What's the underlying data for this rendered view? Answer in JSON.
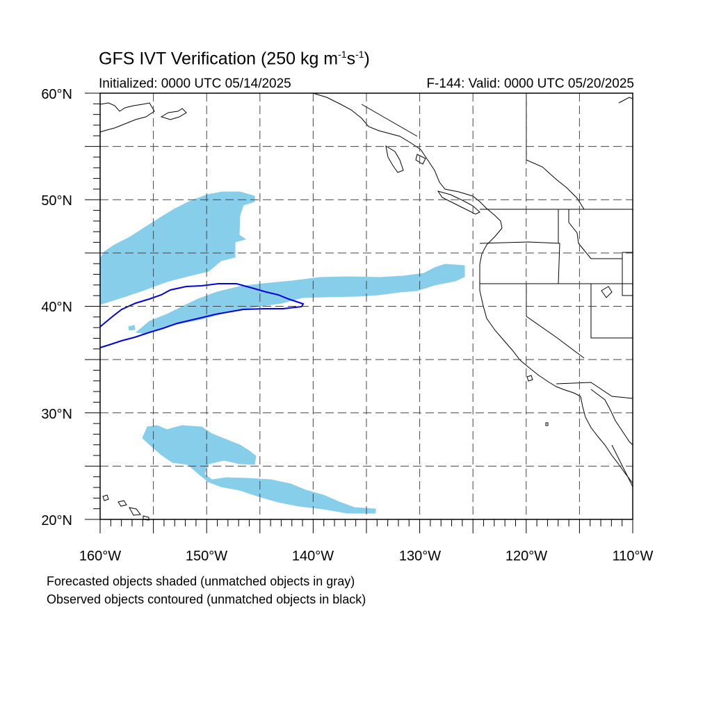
{
  "title": {
    "main": "GFS IVT Verification (250 kg m",
    "exp1": "-1",
    "mid": "s",
    "exp2": "-1",
    "end": ")"
  },
  "initialized": "Initialized: 0000 UTC 05/14/2025",
  "valid": "F-144: Valid: 0000 UTC 05/20/2025",
  "lat_labels": [
    "60°N",
    "50°N",
    "40°N",
    "30°N",
    "20°N"
  ],
  "lon_labels": [
    "160°W",
    "150°W",
    "140°W",
    "130°W",
    "120°W",
    "110°W"
  ],
  "captions": [
    "Forecasted objects shaded (unmatched objects in gray)",
    "Observed objects contoured (unmatched objects in black)"
  ],
  "colors": {
    "forecast_fill": "#87ceeb",
    "observed_contour": "#0000e0",
    "coastline": "#000000",
    "grid": "#444444"
  },
  "map": {
    "lon_range": [
      -160,
      -110
    ],
    "lat_range": [
      20,
      60
    ],
    "grid_lon_step": 5,
    "grid_lat_step": 5
  }
}
